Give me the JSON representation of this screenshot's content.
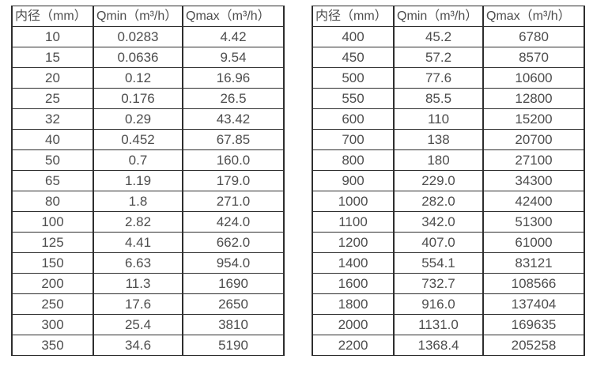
{
  "tables": [
    {
      "name": "spec-table-left",
      "headers": [
        "内径（mm）",
        "Qmin（m³/h）",
        "Qmax（m³/h）"
      ],
      "rows": [
        [
          "10",
          "0.0283",
          "4.42"
        ],
        [
          "15",
          "0.0636",
          "9.54"
        ],
        [
          "20",
          "0.12",
          "16.96"
        ],
        [
          "25",
          "0.176",
          "26.5"
        ],
        [
          "32",
          "0.29",
          "43.42"
        ],
        [
          "40",
          "0.452",
          "67.85"
        ],
        [
          "50",
          "0.7",
          "160.0"
        ],
        [
          "65",
          "1.19",
          "179.0"
        ],
        [
          "80",
          "1.8",
          "271.0"
        ],
        [
          "100",
          "2.82",
          "424.0"
        ],
        [
          "125",
          "4.41",
          "662.0"
        ],
        [
          "150",
          "6.63",
          "954.0"
        ],
        [
          "200",
          "11.3",
          "1690"
        ],
        [
          "250",
          "17.6",
          "2650"
        ],
        [
          "300",
          "25.4",
          "3810"
        ],
        [
          "350",
          "34.6",
          "5190"
        ]
      ]
    },
    {
      "name": "spec-table-right",
      "headers": [
        "内径（mm）",
        "Qmin（m³/h）",
        "Qmax（m³/h）"
      ],
      "rows": [
        [
          "400",
          "45.2",
          "6780"
        ],
        [
          "450",
          "57.2",
          "8570"
        ],
        [
          "500",
          "77.6",
          "10600"
        ],
        [
          "550",
          "85.5",
          "12800"
        ],
        [
          "600",
          "110",
          "15200"
        ],
        [
          "700",
          "138",
          "20700"
        ],
        [
          "800",
          "180",
          "27100"
        ],
        [
          "900",
          "229.0",
          "34300"
        ],
        [
          "1000",
          "282.0",
          "42400"
        ],
        [
          "1100",
          "342.0",
          "51300"
        ],
        [
          "1200",
          "407.0",
          "61000"
        ],
        [
          "1400",
          "554.1",
          "83121"
        ],
        [
          "1600",
          "732.7",
          "108566"
        ],
        [
          "1800",
          "916.0",
          "137404"
        ],
        [
          "2000",
          "1131.0",
          "169635"
        ],
        [
          "2200",
          "1368.4",
          "205258"
        ]
      ]
    }
  ]
}
